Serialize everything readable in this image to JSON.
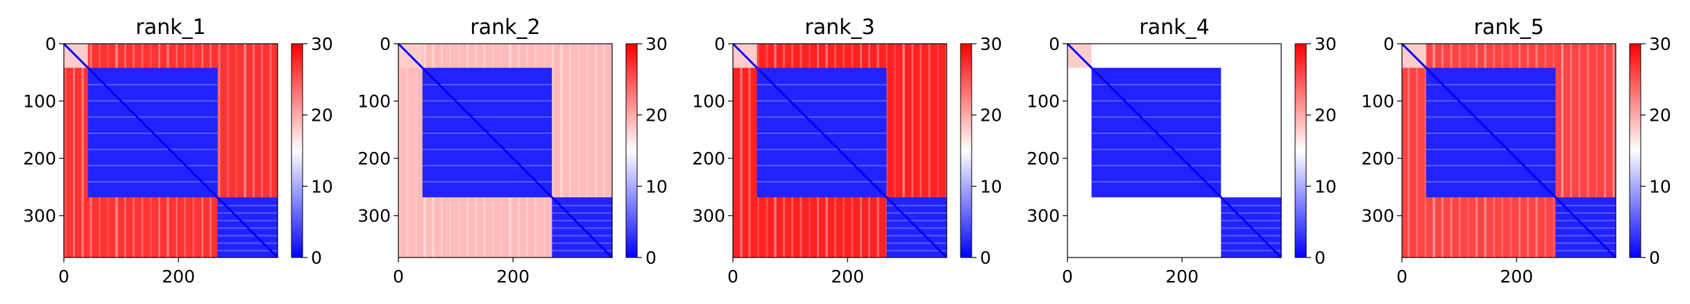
{
  "chart_data": [
    {
      "type": "heatmap",
      "title": "rank_1",
      "xticks": [
        0,
        200
      ],
      "yticks": [
        0,
        100,
        200,
        300
      ],
      "n": 373,
      "colorbar": {
        "ticks": [
          0,
          10,
          20,
          30
        ],
        "range": [
          0,
          30
        ],
        "cmap": "bwr"
      },
      "blocks": [
        {
          "start": 0,
          "end": 42,
          "kind": "diagonal"
        },
        {
          "start": 42,
          "end": 268,
          "kind": "low"
        },
        {
          "start": 268,
          "end": 373,
          "kind": "low"
        }
      ],
      "off_block_value": 27
    },
    {
      "type": "heatmap",
      "title": "rank_2",
      "xticks": [
        0,
        200
      ],
      "yticks": [
        0,
        100,
        200,
        300
      ],
      "n": 373,
      "colorbar": {
        "ticks": [
          0,
          10,
          20,
          30
        ],
        "range": [
          0,
          30
        ],
        "cmap": "bwr"
      },
      "blocks": [
        {
          "start": 0,
          "end": 42,
          "kind": "diagonal"
        },
        {
          "start": 42,
          "end": 268,
          "kind": "low"
        },
        {
          "start": 268,
          "end": 373,
          "kind": "low"
        }
      ],
      "off_block_value": 19
    },
    {
      "type": "heatmap",
      "title": "rank_3",
      "xticks": [
        0,
        200
      ],
      "yticks": [
        0,
        100,
        200,
        300
      ],
      "n": 373,
      "colorbar": {
        "ticks": [
          0,
          10,
          20,
          30
        ],
        "range": [
          0,
          30
        ],
        "cmap": "bwr"
      },
      "blocks": [
        {
          "start": 0,
          "end": 42,
          "kind": "diagonal"
        },
        {
          "start": 42,
          "end": 268,
          "kind": "low"
        },
        {
          "start": 268,
          "end": 373,
          "kind": "low"
        }
      ],
      "off_block_value": 28
    },
    {
      "type": "heatmap",
      "title": "rank_4",
      "xticks": [
        0,
        200
      ],
      "yticks": [
        0,
        100,
        200,
        300
      ],
      "n": 373,
      "colorbar": {
        "ticks": [
          0,
          10,
          20,
          30
        ],
        "range": [
          0,
          30
        ],
        "cmap": "bwr"
      },
      "blocks": [
        {
          "start": 0,
          "end": 42,
          "kind": "diagonal"
        },
        {
          "start": 42,
          "end": 268,
          "kind": "low"
        },
        {
          "start": 268,
          "end": 373,
          "kind": "low"
        }
      ],
      "off_block_value": 15
    },
    {
      "type": "heatmap",
      "title": "rank_5",
      "xticks": [
        0,
        200
      ],
      "yticks": [
        0,
        100,
        200,
        300
      ],
      "n": 373,
      "colorbar": {
        "ticks": [
          0,
          10,
          20,
          30
        ],
        "range": [
          0,
          30
        ],
        "cmap": "bwr"
      },
      "blocks": [
        {
          "start": 0,
          "end": 42,
          "kind": "diagonal"
        },
        {
          "start": 42,
          "end": 268,
          "kind": "low"
        },
        {
          "start": 268,
          "end": 373,
          "kind": "low"
        }
      ],
      "off_block_value": 26
    }
  ]
}
